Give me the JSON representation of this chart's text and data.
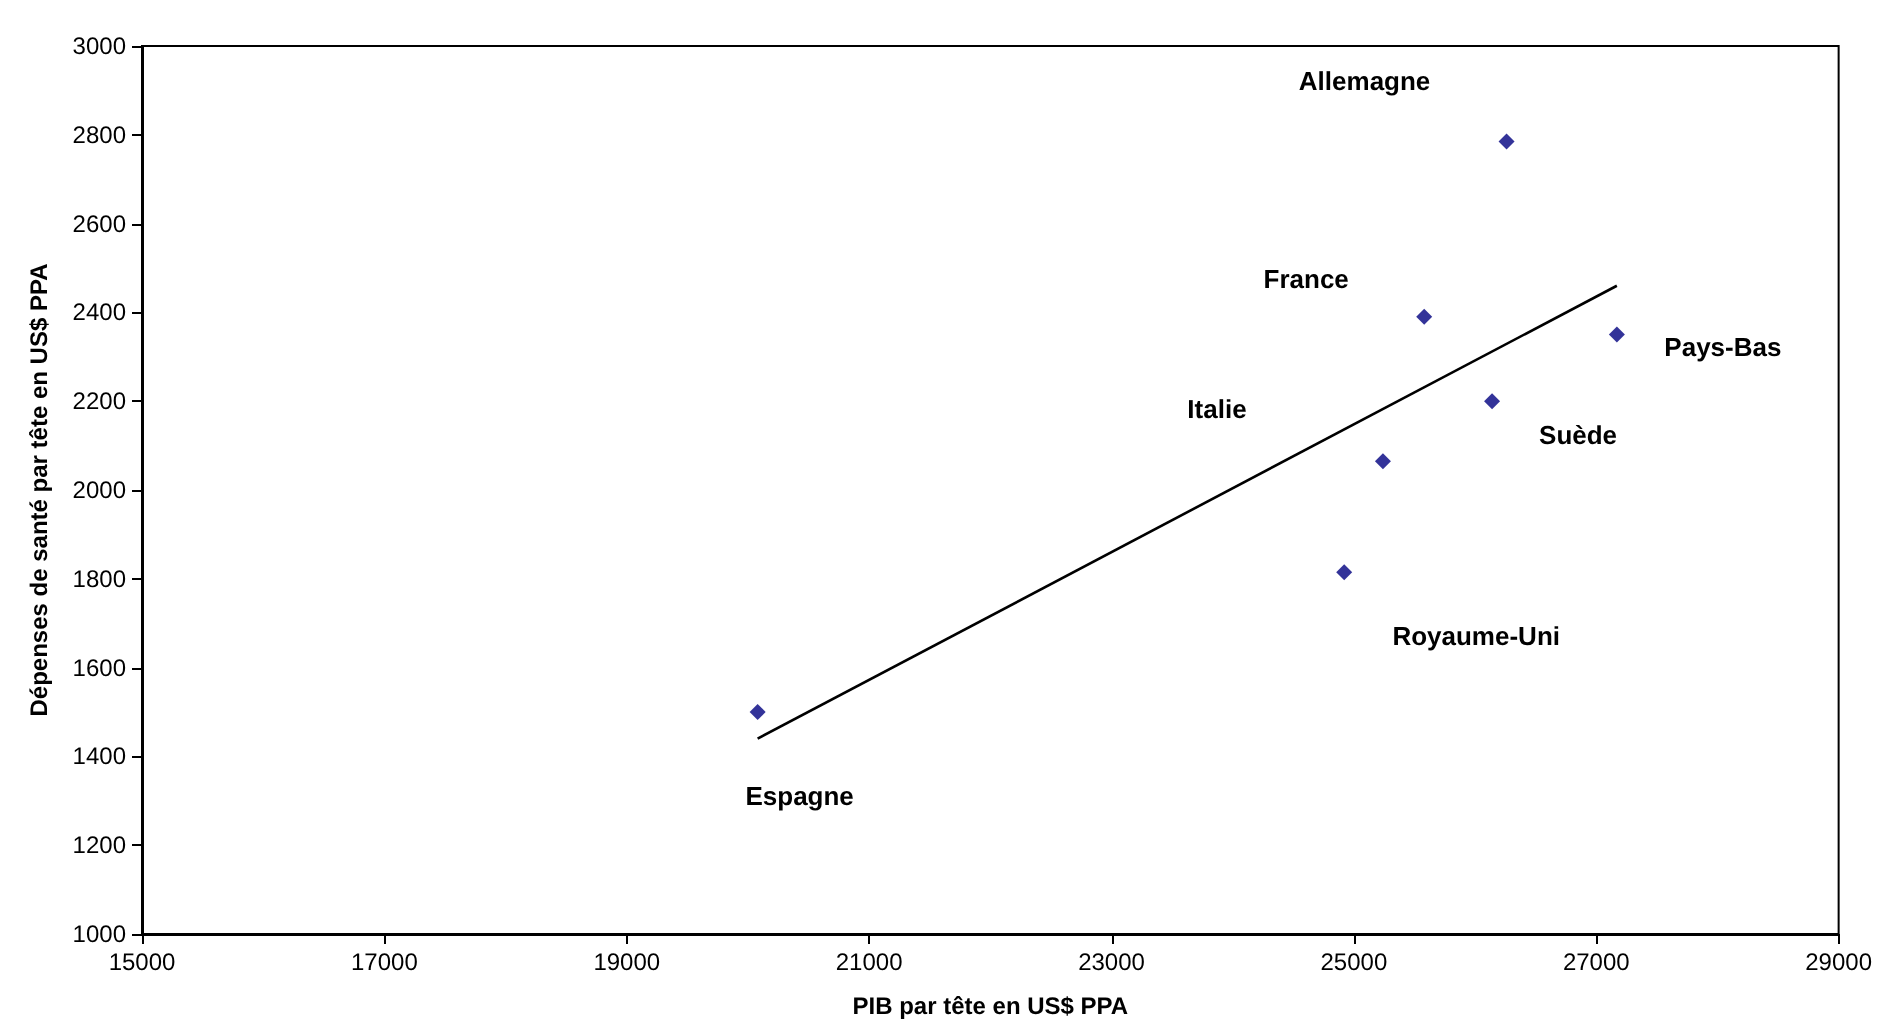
{
  "chart_data": {
    "type": "scatter",
    "xlabel": "PIB par tête en US$ PPA",
    "ylabel": "Dépenses de santé par tête en US$ PPA",
    "xlim": [
      15000,
      29000
    ],
    "xticks": [
      15000,
      17000,
      19000,
      21000,
      23000,
      25000,
      27000,
      29000
    ],
    "ylim": [
      1000,
      3000
    ],
    "yticks": [
      1000,
      1200,
      1400,
      1600,
      1800,
      2000,
      2200,
      2400,
      2600,
      2800,
      3000
    ],
    "grid": false,
    "marker": "diamond",
    "series": [
      {
        "color": "#000080",
        "x": [
          20080,
          24920,
          25240,
          25580,
          26140,
          26260,
          27170
        ],
        "values": [
          1500,
          1815,
          2065,
          2390,
          2200,
          2785,
          2350
        ]
      },
      {
        "type": "line",
        "color": "#000000",
        "line_style": "solid",
        "marker": "none",
        "x": [
          20080,
          27170
        ],
        "values": [
          1440,
          2460
        ]
      }
    ],
    "annotations": [
      "Espagne",
      "Royaume-Uni",
      "Italie",
      "France",
      "Suède",
      "Allemagne",
      "Pays-Bas"
    ]
  }
}
